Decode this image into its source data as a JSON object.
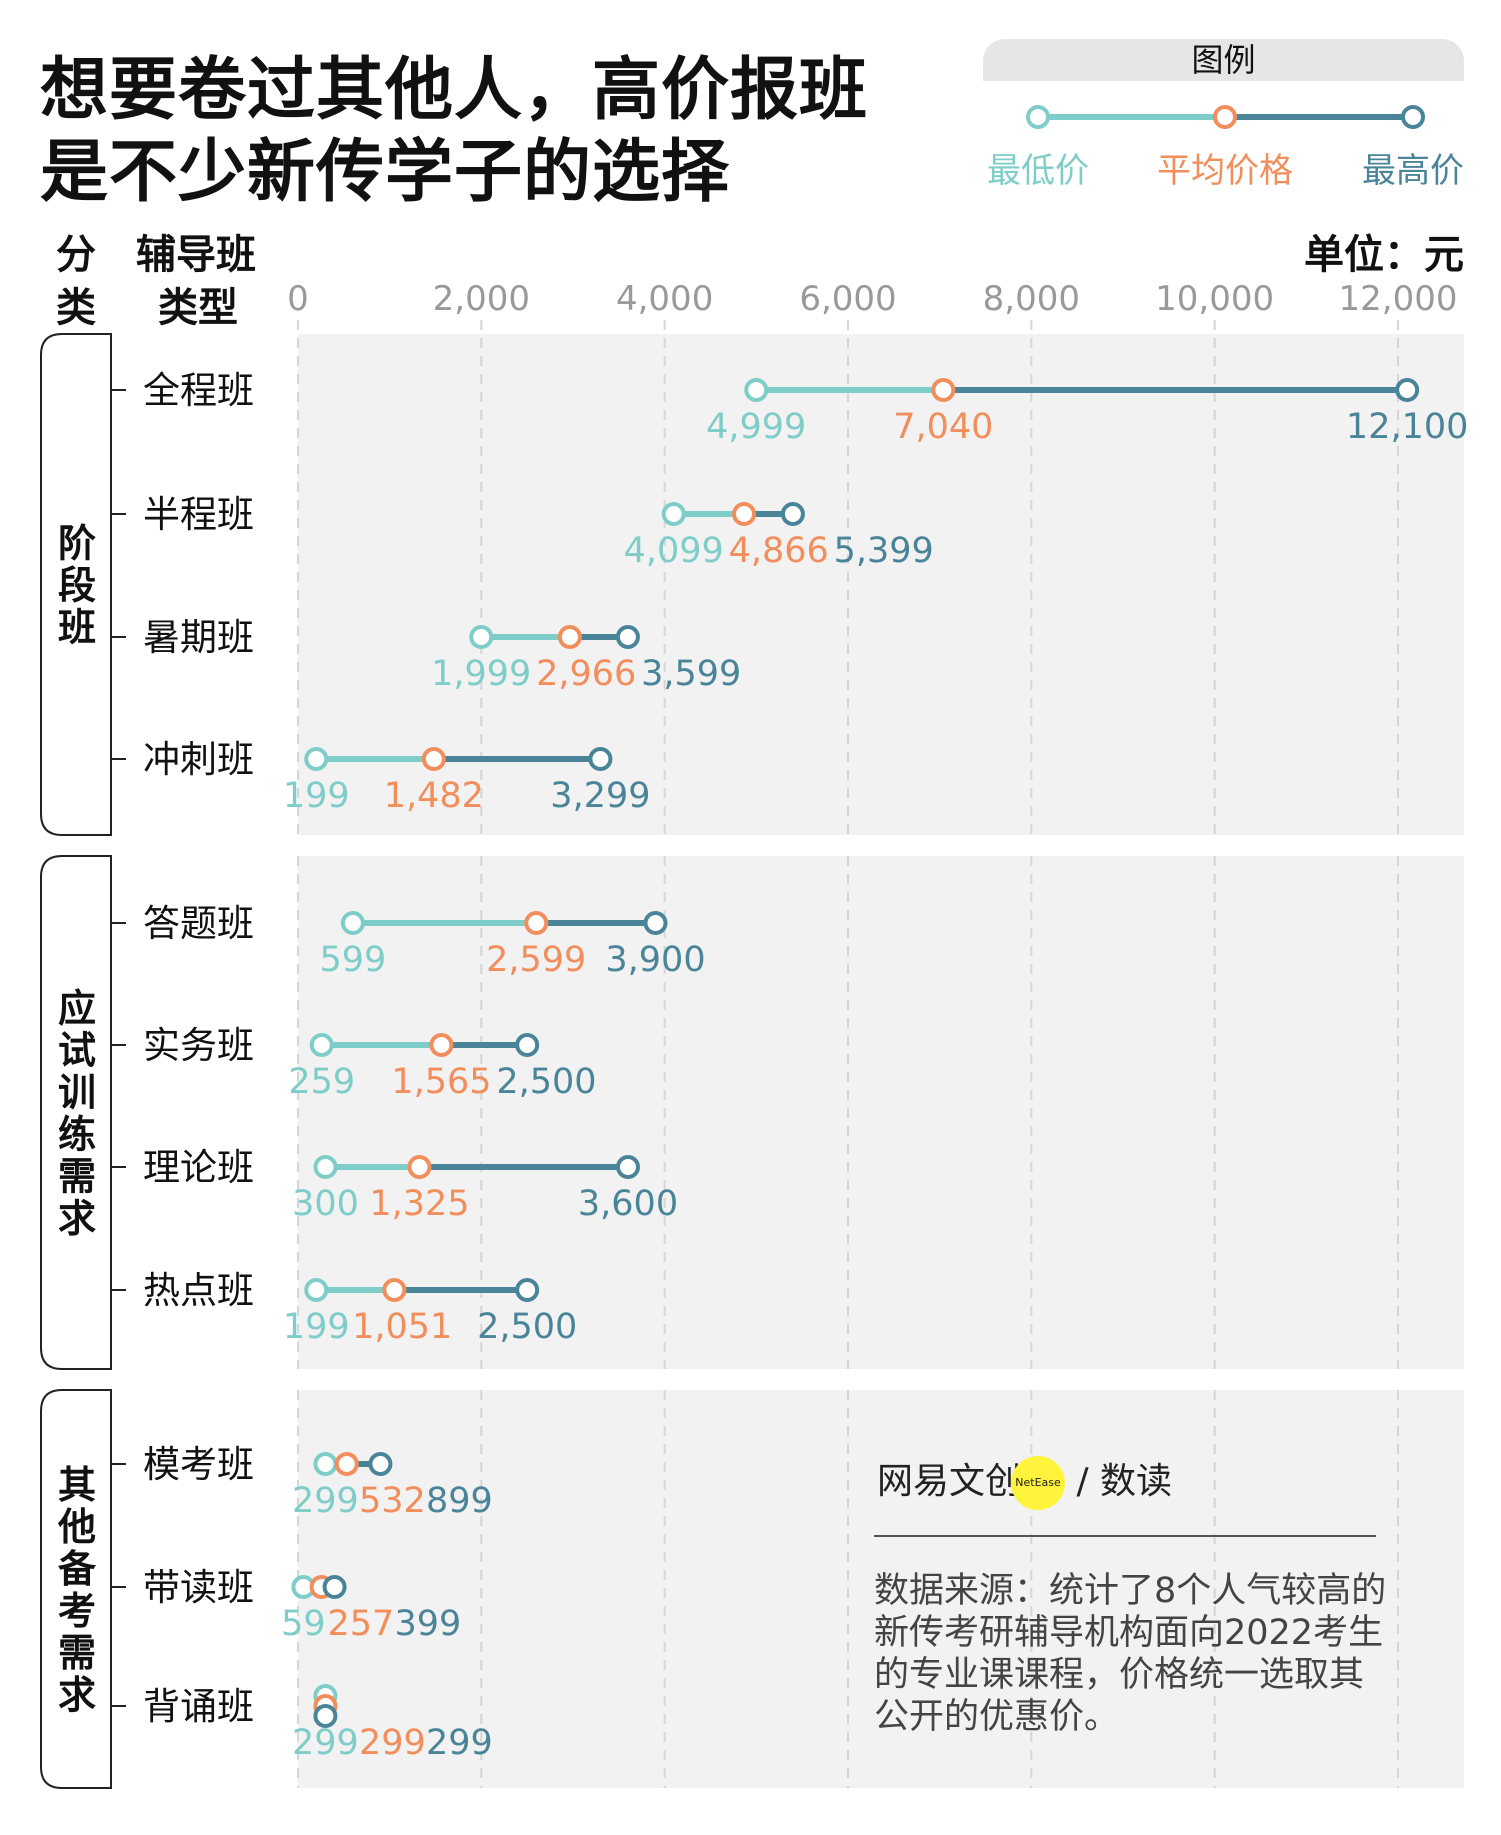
{
  "title": [
    "想要卷过其他人，高价报班",
    "是不少新传学子的选择"
  ],
  "legend": {
    "header": "图例",
    "items": [
      "最低价",
      "平均价格",
      "最高价"
    ]
  },
  "headers": {
    "category": [
      "分",
      "类"
    ],
    "type": [
      "辅导班",
      "类型"
    ],
    "unit": "单位：元"
  },
  "colors": {
    "min": "#7ecdc8",
    "avg": "#f28e5c",
    "max": "#4a8499",
    "panel": "#f2f2f2"
  },
  "logo": {
    "text": "网易文创",
    "badge": "NetEase",
    "suffix": "/ 数读"
  },
  "source": "数据来源：统计了8个人气较高的新传考研辅导机构面向2022考生的专业课课程，价格统一选取其公开的优惠价。",
  "chart_data": {
    "type": "dumbbell",
    "xlim": [
      0,
      12000
    ],
    "ticks": [
      0,
      2000,
      4000,
      6000,
      8000,
      10000,
      12000
    ],
    "tick_labels": [
      "0",
      "2,000",
      "4,000",
      "6,000",
      "8,000",
      "10,000",
      "12,000"
    ],
    "grid": true,
    "legend_position": "top-right",
    "groups": [
      {
        "name": "阶段班",
        "rows": [
          {
            "label": "全程班",
            "min": 4999,
            "avg": 7040,
            "max": 12100
          },
          {
            "label": "半程班",
            "min": 4099,
            "avg": 4866,
            "max": 5399
          },
          {
            "label": "暑期班",
            "min": 1999,
            "avg": 2966,
            "max": 3599
          },
          {
            "label": "冲刺班",
            "min": 199,
            "avg": 1482,
            "max": 3299
          }
        ]
      },
      {
        "name": "应试训练需求",
        "rows": [
          {
            "label": "答题班",
            "min": 599,
            "avg": 2599,
            "max": 3900
          },
          {
            "label": "实务班",
            "min": 259,
            "avg": 1565,
            "max": 2500
          },
          {
            "label": "理论班",
            "min": 300,
            "avg": 1325,
            "max": 3600
          },
          {
            "label": "热点班",
            "min": 199,
            "avg": 1051,
            "max": 2500
          }
        ]
      },
      {
        "name": "其他备考需求",
        "rows": [
          {
            "label": "模考班",
            "min": 299,
            "avg": 532,
            "max": 899
          },
          {
            "label": "带读班",
            "min": 59,
            "avg": 257,
            "max": 399
          },
          {
            "label": "背诵班",
            "min": 299,
            "avg": 299,
            "max": 299
          }
        ]
      }
    ]
  }
}
